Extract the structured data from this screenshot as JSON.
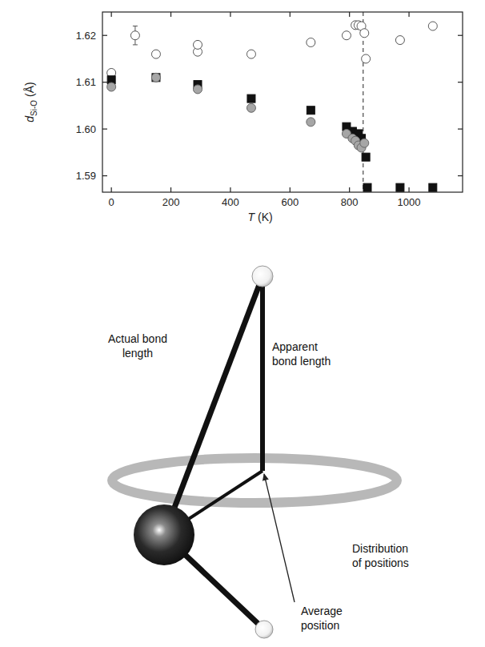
{
  "chart_data": {
    "type": "scatter",
    "x_label": {
      "symbol": "T",
      "unit": "(K)"
    },
    "y_label": {
      "symbol": "d",
      "subscript": "Si-O",
      "unit": "(Å)"
    },
    "xlim": [
      -30,
      1180
    ],
    "ylim": [
      1.5865,
      1.625
    ],
    "xticks": [
      0,
      200,
      400,
      600,
      800,
      1000
    ],
    "yticks": [
      1.59,
      {
        "value": 1.6,
        "label": "1.60"
      },
      1.61,
      1.62
    ],
    "reference_x": 846,
    "series": [
      {
        "marker": "circle",
        "color": "#ffffff",
        "x": [
          0,
          80,
          150,
          290,
          290,
          470,
          670,
          790,
          820,
          830,
          840,
          850,
          855,
          970,
          1080
        ],
        "values": [
          1.612,
          1.62,
          1.616,
          1.6165,
          1.618,
          1.616,
          1.6185,
          1.62,
          1.6222,
          1.6222,
          1.622,
          1.6205,
          1.615,
          1.619,
          1.622
        ],
        "errors": [
          null,
          0.002,
          null,
          null,
          null,
          null,
          null,
          null,
          null,
          null,
          null,
          null,
          null,
          null,
          null
        ]
      },
      {
        "marker": "square",
        "color": "#111111",
        "x": [
          0,
          150,
          290,
          470,
          670,
          790,
          810,
          830,
          840,
          855,
          860,
          970,
          1080
        ],
        "values": [
          1.6105,
          1.611,
          1.6095,
          1.6065,
          1.604,
          1.6005,
          1.5995,
          1.599,
          1.598,
          1.594,
          1.5875,
          1.5875,
          1.5875
        ]
      },
      {
        "marker": "circle",
        "color": "#a6a6a6",
        "x": [
          0,
          150,
          290,
          470,
          670,
          790,
          810,
          820,
          830,
          840,
          850
        ],
        "values": [
          1.609,
          1.611,
          1.6085,
          1.6045,
          1.6015,
          1.599,
          1.598,
          1.5975,
          1.5965,
          1.596,
          1.597
        ]
      }
    ]
  },
  "diagram": {
    "labels": [
      {
        "lines": [
          "Actual bond",
          "length"
        ]
      },
      {
        "lines": [
          "Apparent",
          "bond length"
        ]
      },
      {
        "lines": [
          "Distribution",
          "of positions"
        ]
      },
      {
        "lines": [
          "Average",
          "position"
        ]
      }
    ]
  }
}
